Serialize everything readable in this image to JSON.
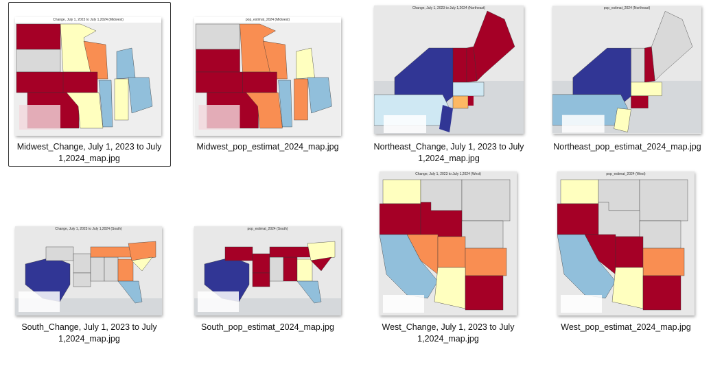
{
  "files": [
    {
      "name": "Midwest_Change, July 1, 2023 to July 1,2024_map.jpg",
      "line1": "Midwest_Change, July 1, 2023 to July",
      "line2": "1,2024_map.jpg",
      "map_title": "Change, July 1, 2023 to July 1,2024 (Midwest)",
      "selected": true
    },
    {
      "name": "Midwest_pop_estimat_2024_map.jpg",
      "line1": "Midwest_pop_estimat_2024_map.jpg",
      "line2": "",
      "map_title": "pop_estimat_2024 (Midwest)"
    },
    {
      "name": "Northeast_Change, July 1, 2023 to July 1,2024_map.jpg",
      "line1": "Northeast_Change, July 1, 2023 to July",
      "line2": "1,2024_map.jpg",
      "map_title": "Change, July 1, 2023 to July 1,2024 (Northeast)"
    },
    {
      "name": "Northeast_pop_estimat_2024_map.jpg",
      "line1": "Northeast_pop_estimat_2024_map.jpg",
      "line2": "",
      "map_title": "pop_estimat_2024 (Northeast)"
    },
    {
      "name": "South_Change, July 1, 2023 to July 1,2024_map.jpg",
      "line1": "South_Change, July 1, 2023 to July",
      "line2": "1,2024_map.jpg",
      "map_title": "Change, July 1, 2023 to July 1,2024 (South)"
    },
    {
      "name": "South_pop_estimat_2024_map.jpg",
      "line1": "South_pop_estimat_2024_map.jpg",
      "line2": "",
      "map_title": "pop_estimat_2024 (South)"
    },
    {
      "name": "West_Change, July 1, 2023 to July 1,2024_map.jpg",
      "line1": "West_Change, July 1, 2023 to July",
      "line2": "1,2024_map.jpg",
      "map_title": "Change, July 1, 2023 to July 1,2024 (West)"
    },
    {
      "name": "West_pop_estimat_2024_map.jpg",
      "line1": "West_pop_estimat_2024_map.jpg",
      "line2": "",
      "map_title": "pop_estimat_2024 (West)"
    }
  ],
  "palette": {
    "dark_red": "#a50026",
    "orange": "#f98e52",
    "light_yellow": "#ffffbf",
    "light_blue": "#91bfdb",
    "navy": "#313695",
    "no_data": "#d9d9d9",
    "selection_border": "#333333"
  }
}
